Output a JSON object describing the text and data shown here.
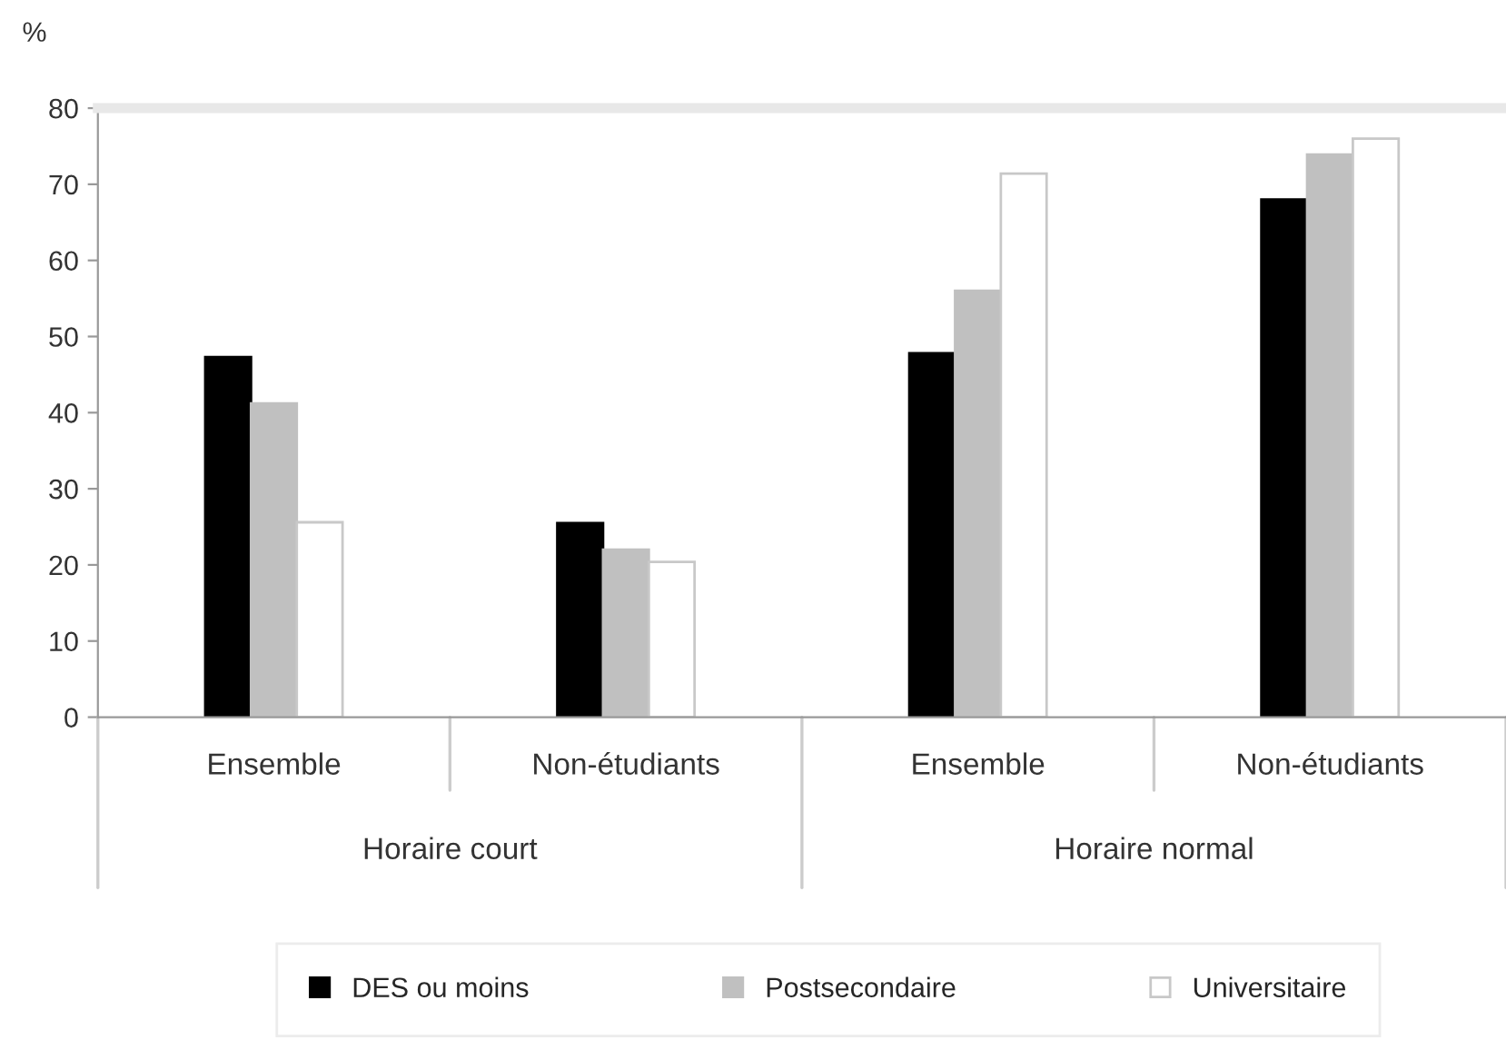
{
  "chart_data": {
    "type": "bar",
    "ylabel": "%",
    "categories": [
      "Ensemble",
      "Non-étudiants",
      "Ensemble",
      "Non-étudiants"
    ],
    "series": [
      {
        "name": "DES ou moins",
        "color": "#000000",
        "values": [
          47.3,
          25.5,
          47.8,
          68.0
        ]
      },
      {
        "name": "Postsecondaire",
        "color": "#c0c0c0",
        "values": [
          41.2,
          22.0,
          56.0,
          73.9
        ]
      },
      {
        "name": "Universitaire",
        "color": "#ffffff",
        "values": [
          25.6,
          20.4,
          71.4,
          76.0
        ]
      }
    ],
    "annotations": [
      "Horaire court",
      "Horaire normal"
    ],
    "ylim": [
      0,
      80
    ],
    "yticks": [
      0,
      10,
      20,
      30,
      40,
      50,
      60,
      70,
      80
    ],
    "grid": false,
    "legend": "bottom"
  }
}
